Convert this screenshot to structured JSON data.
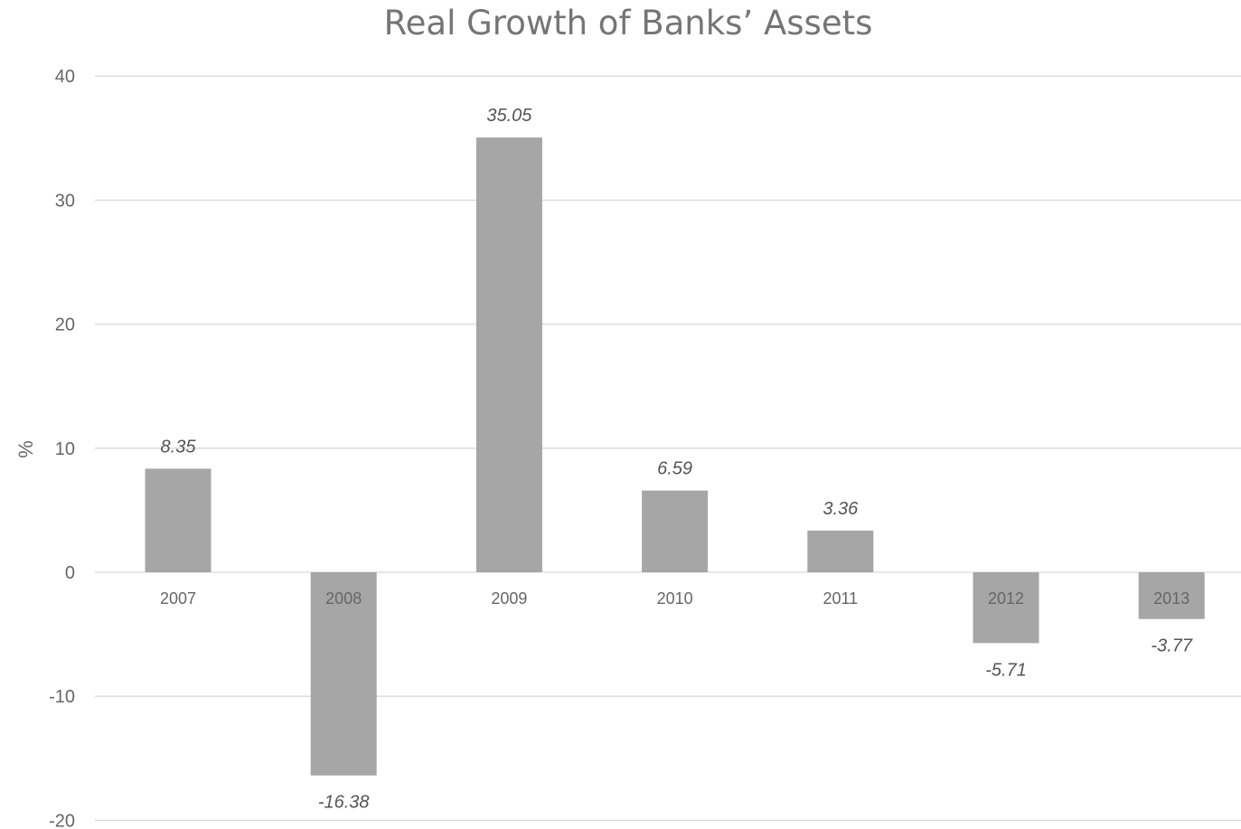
{
  "chart_data": {
    "type": "bar",
    "title": "Real Growth of Banks’ Assets",
    "xlabel": "",
    "ylabel": "%",
    "categories": [
      "2007",
      "2008",
      "2009",
      "2010",
      "2011",
      "2012",
      "2013"
    ],
    "values": [
      8.35,
      -16.38,
      35.05,
      6.59,
      3.36,
      -5.71,
      -3.77
    ],
    "value_labels": [
      "8.35",
      "-16.38",
      "35.05",
      "6.59",
      "3.36",
      "-5.71",
      "-3.77"
    ],
    "ylim": [
      -20,
      40
    ],
    "yticks": [
      -20,
      -10,
      0,
      10,
      20,
      30,
      40
    ],
    "ytick_labels": [
      "-20",
      "-10",
      "0",
      "10",
      "20",
      "30",
      "40"
    ],
    "grid": true,
    "legend": "none",
    "bar_color": "#a6a6a6",
    "grid_color": "#d9d9d9"
  }
}
